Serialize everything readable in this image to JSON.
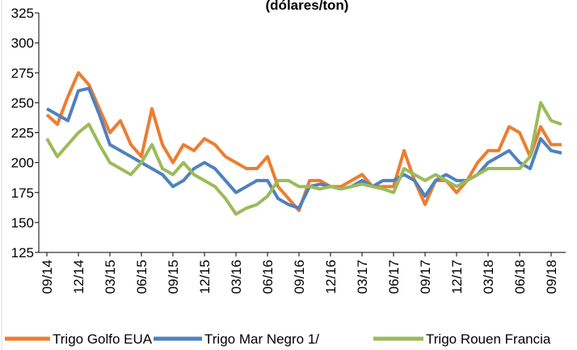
{
  "chart_data": {
    "type": "line",
    "title": "(dólares/ton)",
    "categories": [
      "09/14",
      null,
      null,
      "12/14",
      null,
      null,
      "03/15",
      null,
      null,
      "06/15",
      null,
      null,
      "09/15",
      null,
      null,
      "12/15",
      null,
      null,
      "03/16",
      null,
      null,
      "06/16",
      null,
      null,
      "09/16",
      null,
      null,
      "12/16",
      null,
      null,
      "03/17",
      null,
      null,
      "06/17",
      null,
      null,
      "09/17",
      null,
      null,
      "12/17",
      null,
      null,
      "03/18",
      null,
      null,
      "06/18",
      null,
      null,
      "09/18",
      null
    ],
    "series": [
      {
        "name": "Trigo Golfo EUA",
        "color": "#ed7d31",
        "values": [
          240,
          232,
          255,
          275,
          265,
          245,
          225,
          235,
          215,
          205,
          245,
          215,
          200,
          215,
          210,
          220,
          215,
          205,
          200,
          195,
          195,
          205,
          180,
          170,
          160,
          185,
          185,
          180,
          180,
          185,
          190,
          180,
          180,
          180,
          210,
          185,
          165,
          185,
          185,
          175,
          185,
          200,
          210,
          210,
          230,
          225,
          205,
          230,
          215,
          215
        ]
      },
      {
        "name": "Trigo Mar Negro 1/",
        "color": "#4f81bd",
        "values": [
          245,
          240,
          235,
          260,
          262,
          240,
          215,
          210,
          205,
          200,
          195,
          190,
          180,
          185,
          195,
          200,
          195,
          185,
          175,
          180,
          185,
          185,
          170,
          165,
          162,
          180,
          182,
          180,
          178,
          180,
          185,
          180,
          185,
          185,
          190,
          185,
          172,
          185,
          190,
          185,
          185,
          190,
          200,
          205,
          210,
          200,
          195,
          220,
          210,
          208
        ]
      },
      {
        "name": "Trigo Rouen Francia",
        "color": "#9bbb59",
        "values": [
          220,
          205,
          215,
          225,
          232,
          215,
          200,
          195,
          190,
          200,
          215,
          195,
          190,
          200,
          190,
          185,
          180,
          170,
          157,
          162,
          165,
          172,
          185,
          185,
          180,
          180,
          178,
          180,
          178,
          180,
          182,
          180,
          178,
          175,
          195,
          190,
          185,
          190,
          185,
          180,
          185,
          190,
          195,
          195,
          195,
          195,
          205,
          250,
          235,
          232
        ]
      }
    ],
    "ylim": [
      125,
      325
    ],
    "yticks": [
      125,
      150,
      175,
      200,
      225,
      250,
      275,
      300,
      325
    ],
    "grid": false
  }
}
